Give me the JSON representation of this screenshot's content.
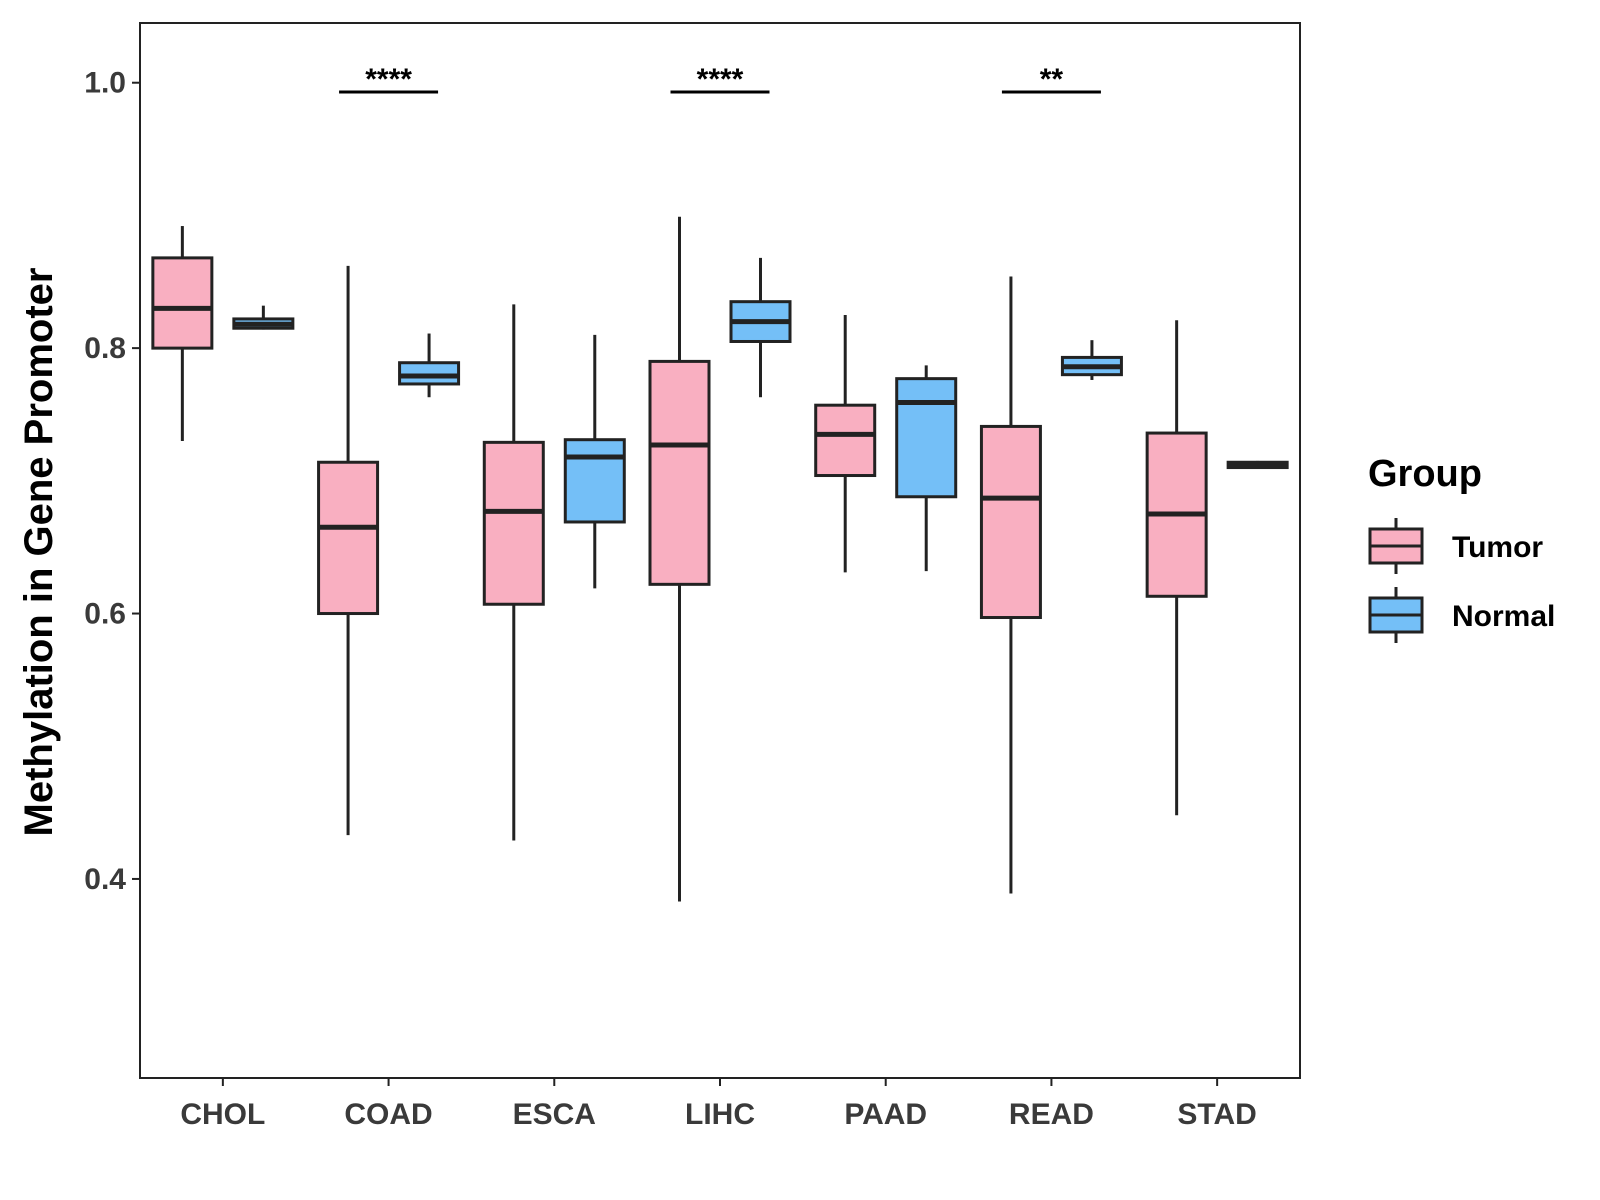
{
  "chart_data": {
    "type": "boxplot",
    "title": "",
    "xlabel": "",
    "ylabel": "Methylation in Gene Promoter",
    "ylim": [
      0.25,
      1.045
    ],
    "yticks": [
      "0.4",
      "0.6",
      "0.8",
      "1.0"
    ],
    "categories": [
      "CHOL",
      "COAD",
      "ESCA",
      "LIHC",
      "PAAD",
      "READ",
      "STAD"
    ],
    "legend": {
      "title": "Group",
      "position": "right"
    },
    "colors": {
      "Tumor": "#F9AFC1",
      "Normal": "#74BFF7",
      "outline": "#222222"
    },
    "series": [
      {
        "name": "Tumor",
        "boxes": [
          {
            "category": "CHOL",
            "min": 0.73,
            "q1": 0.8,
            "median": 0.83,
            "q3": 0.868,
            "max": 0.892
          },
          {
            "category": "COAD",
            "min": 0.433,
            "q1": 0.6,
            "median": 0.665,
            "q3": 0.714,
            "max": 0.862
          },
          {
            "category": "ESCA",
            "min": 0.429,
            "q1": 0.607,
            "median": 0.677,
            "q3": 0.729,
            "max": 0.833
          },
          {
            "category": "LIHC",
            "min": 0.383,
            "q1": 0.622,
            "median": 0.727,
            "q3": 0.79,
            "max": 0.899
          },
          {
            "category": "PAAD",
            "min": 0.631,
            "q1": 0.704,
            "median": 0.735,
            "q3": 0.757,
            "max": 0.825
          },
          {
            "category": "READ",
            "min": 0.389,
            "q1": 0.597,
            "median": 0.687,
            "q3": 0.741,
            "max": 0.854
          },
          {
            "category": "STAD",
            "min": 0.448,
            "q1": 0.613,
            "median": 0.675,
            "q3": 0.736,
            "max": 0.821
          }
        ]
      },
      {
        "name": "Normal",
        "boxes": [
          {
            "category": "CHOL",
            "min": 0.814,
            "q1": 0.815,
            "median": 0.818,
            "q3": 0.822,
            "max": 0.832
          },
          {
            "category": "COAD",
            "min": 0.763,
            "q1": 0.773,
            "median": 0.779,
            "q3": 0.789,
            "max": 0.811
          },
          {
            "category": "ESCA",
            "min": 0.619,
            "q1": 0.669,
            "median": 0.718,
            "q3": 0.731,
            "max": 0.81
          },
          {
            "category": "LIHC",
            "min": 0.763,
            "q1": 0.805,
            "median": 0.82,
            "q3": 0.835,
            "max": 0.868
          },
          {
            "category": "PAAD",
            "min": 0.632,
            "q1": 0.688,
            "median": 0.759,
            "q3": 0.777,
            "max": 0.787
          },
          {
            "category": "READ",
            "min": 0.776,
            "q1": 0.78,
            "median": 0.786,
            "q3": 0.793,
            "max": 0.806
          },
          {
            "category": "STAD",
            "min": 0.709,
            "q1": 0.71,
            "median": 0.712,
            "q3": 0.714,
            "max": 0.715
          }
        ]
      }
    ],
    "significance": [
      {
        "category": "COAD",
        "label": "****",
        "y": 0.993
      },
      {
        "category": "LIHC",
        "label": "****",
        "y": 0.993
      },
      {
        "category": "READ",
        "label": "**",
        "y": 0.993
      }
    ]
  }
}
